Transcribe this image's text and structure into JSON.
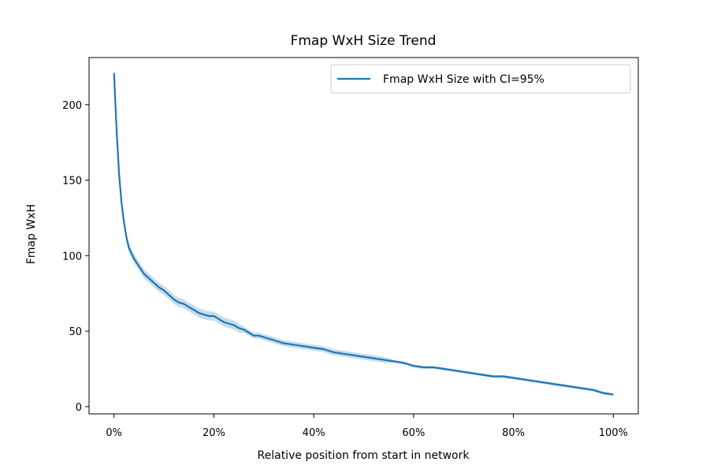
{
  "chart_data": {
    "type": "line",
    "title": "Fmap WxH Size Trend",
    "xlabel": "Relative position from start in network",
    "ylabel": "Fmap WxH",
    "xlim": [
      0,
      1
    ],
    "ylim": [
      0,
      225
    ],
    "x_ticks": [
      {
        "value": 0.0,
        "label": "0%"
      },
      {
        "value": 0.2,
        "label": "20%"
      },
      {
        "value": 0.4,
        "label": "40%"
      },
      {
        "value": 0.6,
        "label": "60%"
      },
      {
        "value": 0.8,
        "label": "80%"
      },
      {
        "value": 1.0,
        "label": "100%"
      }
    ],
    "y_ticks": [
      {
        "value": 0,
        "label": "0"
      },
      {
        "value": 50,
        "label": "50"
      },
      {
        "value": 100,
        "label": "100"
      },
      {
        "value": 150,
        "label": "150"
      },
      {
        "value": 200,
        "label": "200"
      }
    ],
    "grid": false,
    "legend_position": "upper right",
    "series": [
      {
        "name": "Fmap WxH Size with CI=95%",
        "color": "#1f77b4",
        "band_color": "#1f77b4",
        "x": [
          0.0,
          0.005,
          0.01,
          0.015,
          0.02,
          0.025,
          0.03,
          0.04,
          0.05,
          0.06,
          0.07,
          0.08,
          0.09,
          0.1,
          0.11,
          0.12,
          0.13,
          0.14,
          0.15,
          0.16,
          0.17,
          0.18,
          0.19,
          0.2,
          0.21,
          0.22,
          0.23,
          0.24,
          0.25,
          0.26,
          0.27,
          0.28,
          0.29,
          0.3,
          0.32,
          0.34,
          0.36,
          0.38,
          0.4,
          0.42,
          0.44,
          0.46,
          0.48,
          0.5,
          0.52,
          0.54,
          0.56,
          0.58,
          0.6,
          0.62,
          0.64,
          0.66,
          0.68,
          0.7,
          0.72,
          0.74,
          0.76,
          0.78,
          0.8,
          0.82,
          0.84,
          0.86,
          0.88,
          0.9,
          0.92,
          0.94,
          0.96,
          0.98,
          1.0
        ],
        "y": [
          221,
          185,
          155,
          135,
          122,
          112,
          105,
          98,
          93,
          88,
          85,
          82,
          79,
          77,
          74,
          71,
          69,
          68,
          66,
          64,
          62,
          61,
          60,
          60,
          58,
          56,
          55,
          54,
          52,
          51,
          49,
          47,
          47,
          46,
          44,
          42,
          41,
          40,
          39,
          38,
          36,
          35,
          34,
          33,
          32,
          31,
          30,
          29,
          27,
          26,
          26,
          25,
          24,
          23,
          22,
          21,
          20,
          20,
          19,
          18,
          17,
          16,
          15,
          14,
          13,
          12,
          11,
          9,
          8
        ],
        "ci_halfwidth": [
          0,
          2,
          3,
          3,
          3,
          3,
          3,
          3,
          3,
          3,
          3,
          3,
          3,
          3,
          3,
          3,
          3,
          3,
          3,
          3,
          3,
          3,
          3,
          3,
          3,
          3,
          3,
          3,
          3,
          2,
          2,
          2,
          2,
          2,
          2,
          2,
          2,
          2,
          2,
          2,
          2,
          2,
          2,
          2,
          2,
          2,
          1,
          1,
          1,
          1,
          1,
          1,
          1,
          1,
          1,
          1,
          1,
          1,
          1,
          1,
          1,
          1,
          1,
          1,
          1,
          1,
          1,
          1,
          1
        ]
      }
    ]
  }
}
